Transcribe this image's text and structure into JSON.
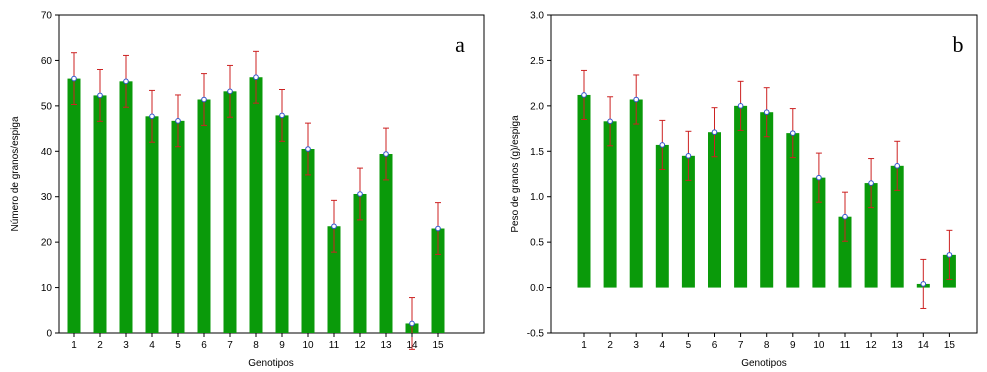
{
  "chart_data": [
    {
      "type": "bar",
      "panel_letter": "a",
      "categories": [
        "1",
        "2",
        "3",
        "4",
        "5",
        "6",
        "7",
        "8",
        "9",
        "10",
        "11",
        "12",
        "13",
        "14",
        "15"
      ],
      "values": [
        56,
        52.3,
        55.4,
        47.7,
        46.7,
        51.4,
        53.2,
        56.3,
        47.9,
        40.5,
        23.5,
        30.6,
        39.4,
        2.1,
        23
      ],
      "errors": [
        5.7,
        5.7,
        5.7,
        5.7,
        5.7,
        5.7,
        5.7,
        5.7,
        5.7,
        5.7,
        5.7,
        5.7,
        5.7,
        5.7,
        5.7
      ],
      "xlabel": "Genotipos",
      "ylabel": "Número de granos/espiga",
      "ylim": [
        0,
        70
      ],
      "yticks": [
        "0",
        "10",
        "20",
        "30",
        "40",
        "50",
        "60",
        "70"
      ],
      "bar_color": "#0a9a0a",
      "error_color": "#cc2222",
      "marker_color": "#3355cc",
      "grid": false
    },
    {
      "type": "bar",
      "panel_letter": "b",
      "categories": [
        "1",
        "2",
        "3",
        "4",
        "5",
        "6",
        "7",
        "8",
        "9",
        "10",
        "11",
        "12",
        "13",
        "14",
        "15"
      ],
      "values": [
        2.12,
        1.83,
        2.07,
        1.57,
        1.45,
        1.71,
        2.0,
        1.93,
        1.7,
        1.21,
        0.78,
        1.15,
        1.34,
        0.04,
        0.36
      ],
      "errors": [
        0.27,
        0.27,
        0.27,
        0.27,
        0.27,
        0.27,
        0.27,
        0.27,
        0.27,
        0.27,
        0.27,
        0.27,
        0.27,
        0.27,
        0.27
      ],
      "xlabel": "Genotipos",
      "ylabel": "Peso de granos (g)/espiga",
      "ylim": [
        -0.5,
        3.0
      ],
      "yticks": [
        "-0.5",
        "0.0",
        "0.5",
        "1.0",
        "1.5",
        "2.0",
        "2.5",
        "3.0"
      ],
      "bar_color": "#0a9a0a",
      "error_color": "#cc2222",
      "marker_color": "#3355cc",
      "grid": false
    }
  ]
}
